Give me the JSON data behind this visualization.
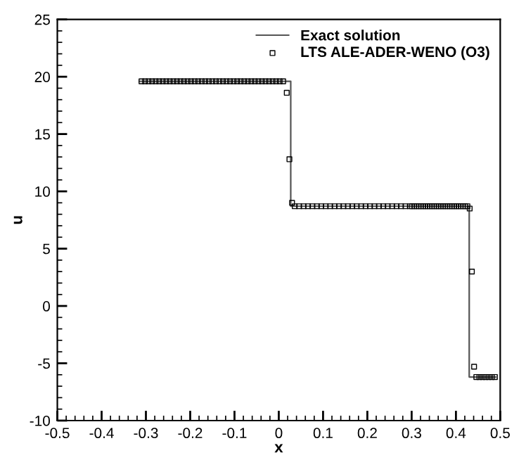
{
  "chart_data": {
    "type": "line",
    "xlabel": "x",
    "ylabel": "u",
    "xlim": [
      -0.5,
      0.5
    ],
    "ylim": [
      -10,
      25
    ],
    "xticks": [
      -0.5,
      -0.4,
      -0.3,
      -0.2,
      -0.1,
      0,
      0.1,
      0.2,
      0.3,
      0.4,
      0.5
    ],
    "yticks": [
      -10,
      -5,
      0,
      5,
      10,
      15,
      20,
      25
    ],
    "grid": false,
    "legend": "top right",
    "series": [
      {
        "name": "Exact solution",
        "color": "#555555",
        "marker": "none",
        "line_style": "solid",
        "x": [
          -0.315,
          0.027,
          0.027,
          0.43,
          0.43,
          0.49
        ],
        "values": [
          19.6,
          19.6,
          8.7,
          8.7,
          -6.2,
          -6.2
        ]
      },
      {
        "name": "LTS ALE-ADER-WENO (O3)",
        "type": "scatter",
        "color": "#000000",
        "marker": "square",
        "x": [
          -0.31,
          -0.302,
          -0.294,
          -0.286,
          -0.278,
          -0.27,
          -0.262,
          -0.254,
          -0.246,
          -0.238,
          -0.23,
          -0.222,
          -0.214,
          -0.206,
          -0.198,
          -0.19,
          -0.182,
          -0.174,
          -0.166,
          -0.158,
          -0.15,
          -0.142,
          -0.134,
          -0.126,
          -0.118,
          -0.11,
          -0.102,
          -0.094,
          -0.086,
          -0.078,
          -0.07,
          -0.062,
          -0.054,
          -0.046,
          -0.038,
          -0.03,
          -0.022,
          -0.014,
          -0.006,
          0.002,
          0.01,
          0.018,
          0.024,
          0.03,
          0.036,
          0.046,
          0.056,
          0.066,
          0.076,
          0.086,
          0.096,
          0.106,
          0.116,
          0.126,
          0.136,
          0.146,
          0.156,
          0.166,
          0.176,
          0.186,
          0.196,
          0.206,
          0.216,
          0.226,
          0.236,
          0.246,
          0.256,
          0.266,
          0.276,
          0.286,
          0.296,
          0.301,
          0.306,
          0.311,
          0.316,
          0.321,
          0.326,
          0.331,
          0.336,
          0.341,
          0.346,
          0.351,
          0.356,
          0.361,
          0.366,
          0.371,
          0.376,
          0.381,
          0.386,
          0.391,
          0.396,
          0.401,
          0.406,
          0.411,
          0.416,
          0.421,
          0.426,
          0.431,
          0.436,
          0.441,
          0.446,
          0.453,
          0.46,
          0.467,
          0.474,
          0.481,
          0.488
        ],
        "values": [
          19.6,
          19.6,
          19.6,
          19.6,
          19.6,
          19.6,
          19.6,
          19.6,
          19.6,
          19.6,
          19.6,
          19.6,
          19.6,
          19.6,
          19.6,
          19.6,
          19.6,
          19.6,
          19.6,
          19.6,
          19.6,
          19.6,
          19.6,
          19.6,
          19.6,
          19.6,
          19.6,
          19.6,
          19.6,
          19.6,
          19.6,
          19.6,
          19.6,
          19.6,
          19.6,
          19.6,
          19.6,
          19.6,
          19.6,
          19.6,
          19.6,
          18.6,
          12.8,
          9.0,
          8.7,
          8.7,
          8.7,
          8.7,
          8.7,
          8.7,
          8.7,
          8.7,
          8.7,
          8.7,
          8.7,
          8.7,
          8.7,
          8.7,
          8.7,
          8.7,
          8.7,
          8.7,
          8.7,
          8.7,
          8.7,
          8.7,
          8.7,
          8.7,
          8.7,
          8.7,
          8.7,
          8.7,
          8.7,
          8.7,
          8.7,
          8.7,
          8.7,
          8.7,
          8.7,
          8.7,
          8.7,
          8.7,
          8.7,
          8.7,
          8.7,
          8.7,
          8.7,
          8.7,
          8.7,
          8.7,
          8.7,
          8.7,
          8.7,
          8.7,
          8.7,
          8.7,
          8.7,
          8.5,
          3.0,
          -5.3,
          -6.2,
          -6.2,
          -6.2,
          -6.2,
          -6.2,
          -6.2,
          -6.2
        ]
      }
    ]
  }
}
